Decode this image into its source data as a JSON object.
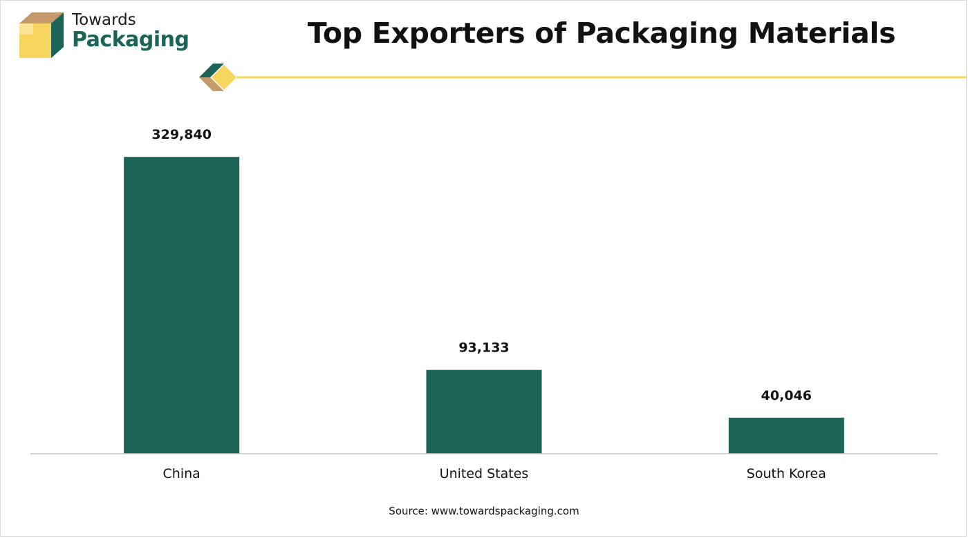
{
  "brand": {
    "name_line1": "Towards",
    "name_line2": "Packaging",
    "accent_color": "#1a6356",
    "highlight_color": "#f7d55e",
    "secondary_color": "#c49a6c",
    "logo_icon": "box-icon"
  },
  "chart_data": {
    "type": "bar",
    "title": "Top Exporters of Packaging Materials",
    "categories": [
      "China",
      "United States",
      "South Korea"
    ],
    "values": [
      329840,
      93133,
      40046
    ],
    "value_labels": [
      "329,840",
      "93,133",
      "40,046"
    ],
    "xlabel": "",
    "ylabel": "",
    "ylim": [
      0,
      330000
    ],
    "grid": false,
    "legend": "none",
    "bar_color": "#1a6356"
  },
  "source": "Source: www.towardspackaging.com"
}
